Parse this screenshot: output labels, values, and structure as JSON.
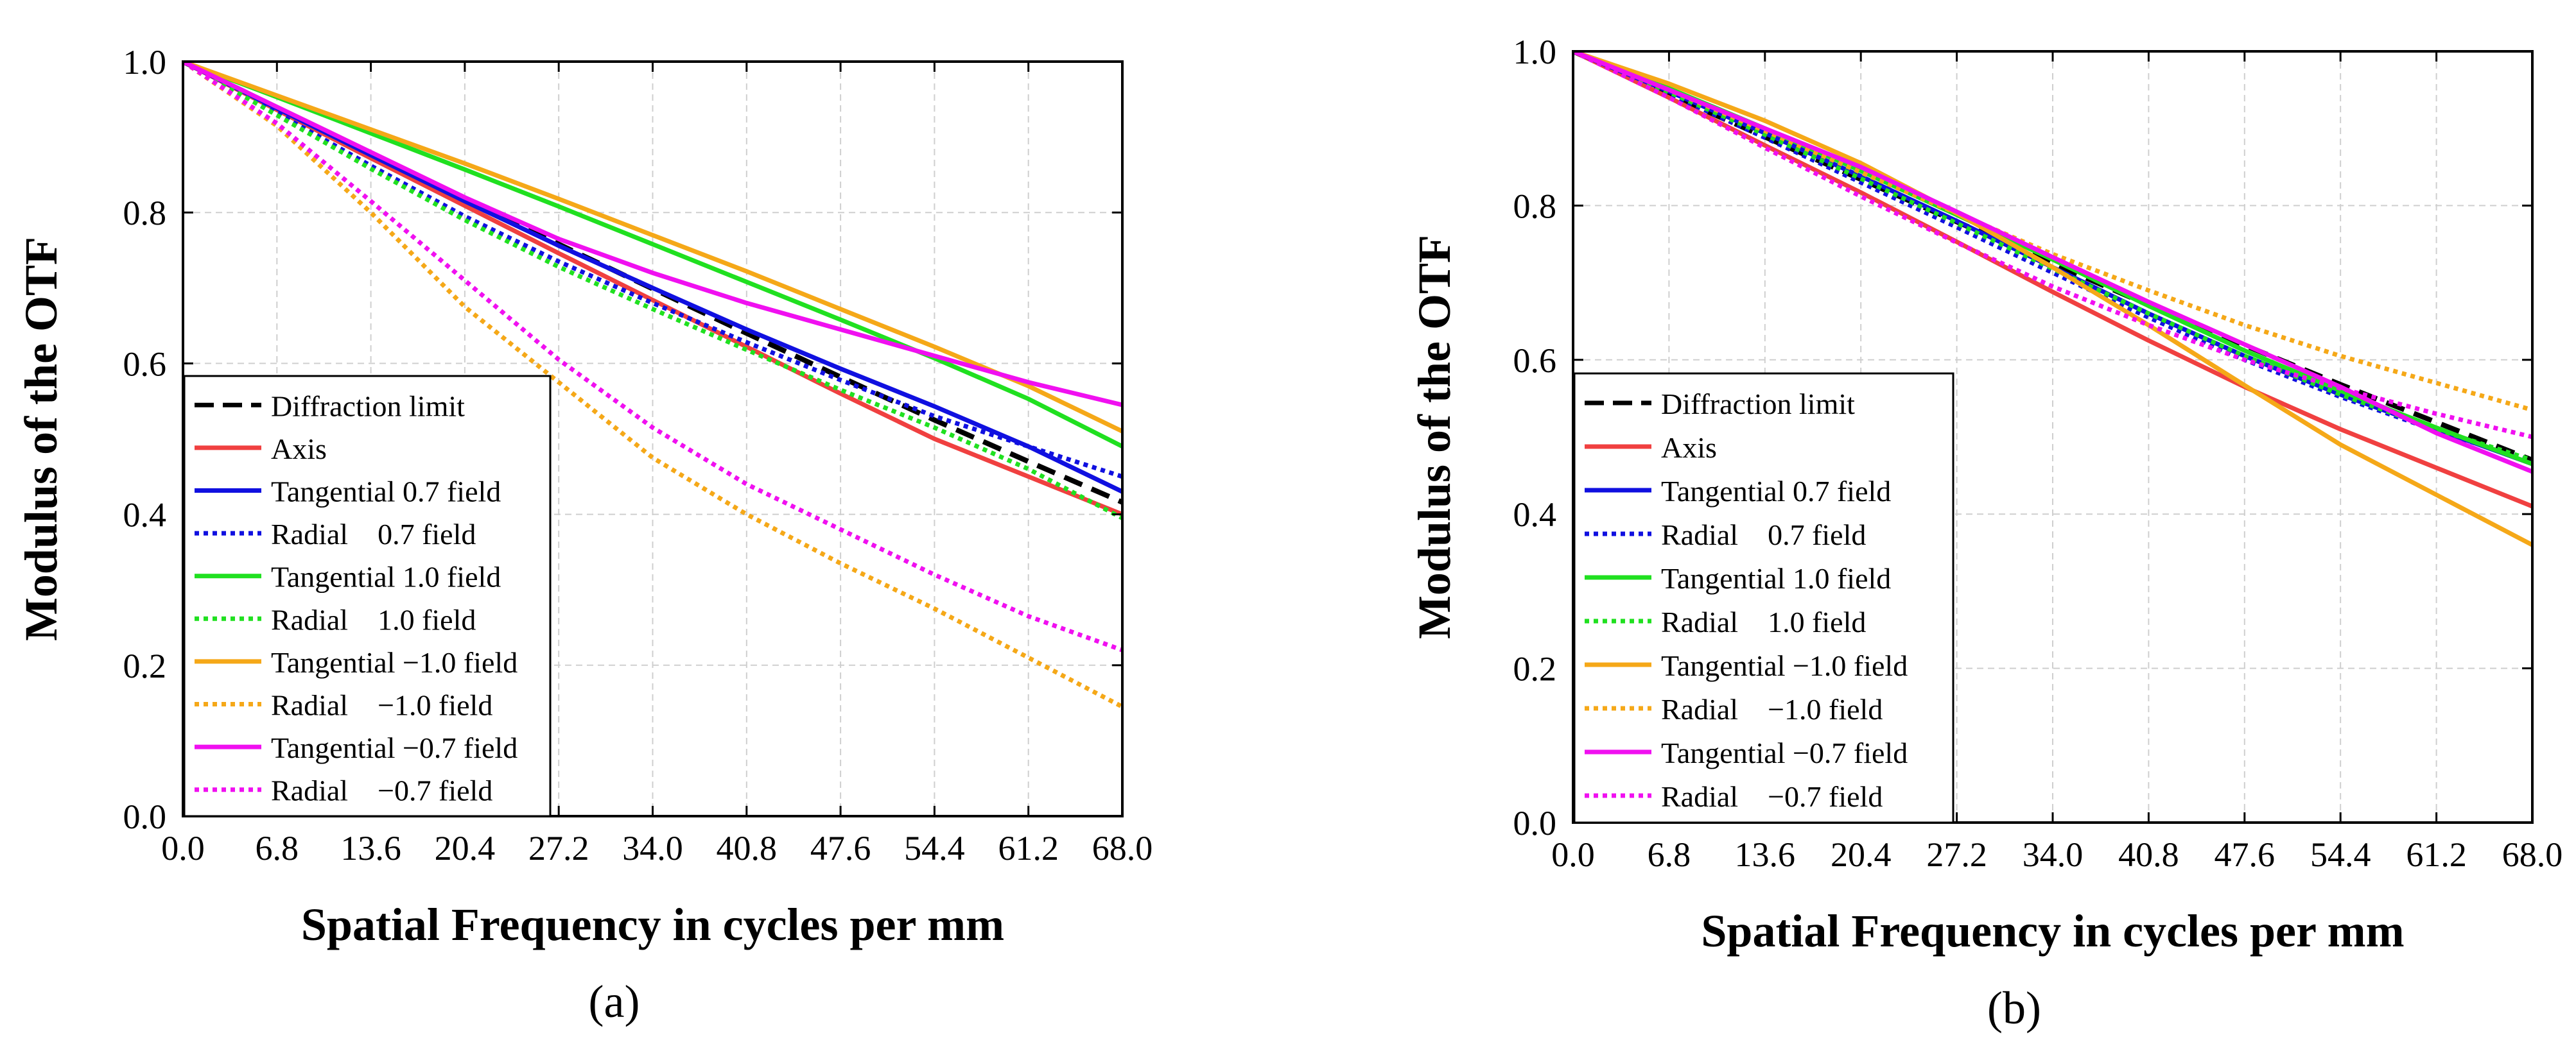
{
  "figure": {
    "panels": [
      "(a)",
      "(b)"
    ]
  },
  "chart_data": [
    {
      "type": "line",
      "panel_label": "(a)",
      "xlabel": "Spatial Frequency in cycles per mm",
      "ylabel": "Modulus of the OTF",
      "xlim": [
        0,
        68
      ],
      "ylim": [
        0,
        1
      ],
      "xticks": [
        "0.0",
        "6.8",
        "13.6",
        "20.4",
        "27.2",
        "34.0",
        "40.8",
        "47.6",
        "54.4",
        "61.2",
        "68.0"
      ],
      "yticks": [
        "0.0",
        "0.2",
        "0.4",
        "0.6",
        "0.8",
        "1.0"
      ],
      "grid": true,
      "legend_position": "bottom-left",
      "x": [
        0,
        6.8,
        13.6,
        20.4,
        27.2,
        34.0,
        40.8,
        47.6,
        54.4,
        61.2,
        68.0
      ],
      "series": [
        {
          "name": "Diffraction limit",
          "color": "#000000",
          "style": "dashed",
          "values": [
            1.0,
            0.939,
            0.878,
            0.818,
            0.758,
            0.699,
            0.64,
            0.582,
            0.525,
            0.47,
            0.416
          ]
        },
        {
          "name": "Axis",
          "color": "#f04040",
          "style": "solid",
          "values": [
            1.0,
            0.936,
            0.872,
            0.809,
            0.746,
            0.684,
            0.622,
            0.56,
            0.5,
            0.45,
            0.4
          ]
        },
        {
          "name": "Tangential 0.7 field",
          "color": "#1010e0",
          "style": "solid",
          "values": [
            1.0,
            0.938,
            0.876,
            0.815,
            0.756,
            0.7,
            0.645,
            0.593,
            0.543,
            0.49,
            0.43
          ]
        },
        {
          "name": "Radial    0.7 field",
          "color": "#1010e0",
          "style": "dotted",
          "values": [
            1.0,
            0.932,
            0.862,
            0.795,
            0.735,
            0.68,
            0.628,
            0.578,
            0.53,
            0.49,
            0.45
          ]
        },
        {
          "name": "Tangential 1.0 field",
          "color": "#20e020",
          "style": "solid",
          "values": [
            1.0,
            0.953,
            0.905,
            0.857,
            0.808,
            0.758,
            0.708,
            0.658,
            0.607,
            0.553,
            0.49
          ]
        },
        {
          "name": "Radial    1.0 field",
          "color": "#20e020",
          "style": "dotted",
          "values": [
            1.0,
            0.929,
            0.858,
            0.79,
            0.728,
            0.672,
            0.618,
            0.565,
            0.515,
            0.46,
            0.395
          ]
        },
        {
          "name": "Tangential −1.0 field",
          "color": "#f5a818",
          "style": "solid",
          "values": [
            1.0,
            0.955,
            0.91,
            0.865,
            0.818,
            0.77,
            0.722,
            0.672,
            0.622,
            0.57,
            0.51
          ]
        },
        {
          "name": "Radial    −1.0 field",
          "color": "#f5a818",
          "style": "dotted",
          "values": [
            1.0,
            0.915,
            0.8,
            0.675,
            0.575,
            0.475,
            0.4,
            0.335,
            0.275,
            0.21,
            0.145
          ]
        },
        {
          "name": "Tangential −0.7 field",
          "color": "#f010f0",
          "style": "solid",
          "values": [
            1.0,
            0.94,
            0.88,
            0.82,
            0.765,
            0.72,
            0.68,
            0.645,
            0.61,
            0.575,
            0.545
          ]
        },
        {
          "name": "Radial    −0.7 field",
          "color": "#f010f0",
          "style": "dotted",
          "values": [
            1.0,
            0.918,
            0.815,
            0.71,
            0.605,
            0.515,
            0.44,
            0.38,
            0.32,
            0.265,
            0.22
          ]
        }
      ]
    },
    {
      "type": "line",
      "panel_label": "(b)",
      "xlabel": "Spatial Frequency in cycles per mm",
      "ylabel": "Modulus of the OTF",
      "xlim": [
        0,
        68
      ],
      "ylim": [
        0,
        1
      ],
      "xticks": [
        "0.0",
        "6.8",
        "13.6",
        "20.4",
        "27.2",
        "34.0",
        "40.8",
        "47.6",
        "54.4",
        "61.2",
        "68.0"
      ],
      "yticks": [
        "0.0",
        "0.2",
        "0.4",
        "0.6",
        "0.8",
        "1.0"
      ],
      "grid": true,
      "legend_position": "bottom-left",
      "x": [
        0,
        6.8,
        13.6,
        20.4,
        27.2,
        34.0,
        40.8,
        47.6,
        54.4,
        61.2,
        68.0
      ],
      "series": [
        {
          "name": "Diffraction limit",
          "color": "#000000",
          "style": "dashed",
          "values": [
            1.0,
            0.944,
            0.889,
            0.834,
            0.779,
            0.725,
            0.671,
            0.619,
            0.568,
            0.519,
            0.47
          ]
        },
        {
          "name": "Axis",
          "color": "#f04040",
          "style": "solid",
          "values": [
            1.0,
            0.94,
            0.878,
            0.817,
            0.753,
            0.688,
            0.625,
            0.565,
            0.51,
            0.46,
            0.41
          ]
        },
        {
          "name": "Tangential 0.7 field",
          "color": "#1010e0",
          "style": "solid",
          "values": [
            1.0,
            0.948,
            0.894,
            0.838,
            0.78,
            0.72,
            0.66,
            0.605,
            0.555,
            0.51,
            0.465
          ]
        },
        {
          "name": "Radial    0.7 field",
          "color": "#1010e0",
          "style": "dotted",
          "values": [
            1.0,
            0.945,
            0.888,
            0.83,
            0.772,
            0.713,
            0.655,
            0.6,
            0.552,
            0.508,
            0.468
          ]
        },
        {
          "name": "Tangential 1.0 field",
          "color": "#20e020",
          "style": "solid",
          "values": [
            1.0,
            0.952,
            0.9,
            0.845,
            0.788,
            0.73,
            0.67,
            0.612,
            0.56,
            0.512,
            0.465
          ]
        },
        {
          "name": "Radial    1.0 field",
          "color": "#20e020",
          "style": "dotted",
          "values": [
            1.0,
            0.947,
            0.892,
            0.835,
            0.777,
            0.718,
            0.66,
            0.605,
            0.555,
            0.51,
            0.47
          ]
        },
        {
          "name": "Tangential −1.0 field",
          "color": "#f5a818",
          "style": "solid",
          "values": [
            1.0,
            0.958,
            0.91,
            0.855,
            0.79,
            0.72,
            0.645,
            0.567,
            0.49,
            0.425,
            0.36
          ]
        },
        {
          "name": "Radial    −1.0 field",
          "color": "#f5a818",
          "style": "dotted",
          "values": [
            1.0,
            0.95,
            0.897,
            0.843,
            0.79,
            0.737,
            0.69,
            0.645,
            0.605,
            0.57,
            0.535
          ]
        },
        {
          "name": "Tangential −0.7 field",
          "color": "#f010f0",
          "style": "solid",
          "values": [
            1.0,
            0.95,
            0.9,
            0.85,
            0.792,
            0.733,
            0.675,
            0.62,
            0.565,
            0.505,
            0.455
          ]
        },
        {
          "name": "Radial    −0.7 field",
          "color": "#f010f0",
          "style": "dotted",
          "values": [
            1.0,
            0.94,
            0.875,
            0.812,
            0.752,
            0.695,
            0.645,
            0.6,
            0.563,
            0.53,
            0.5
          ]
        }
      ]
    }
  ]
}
